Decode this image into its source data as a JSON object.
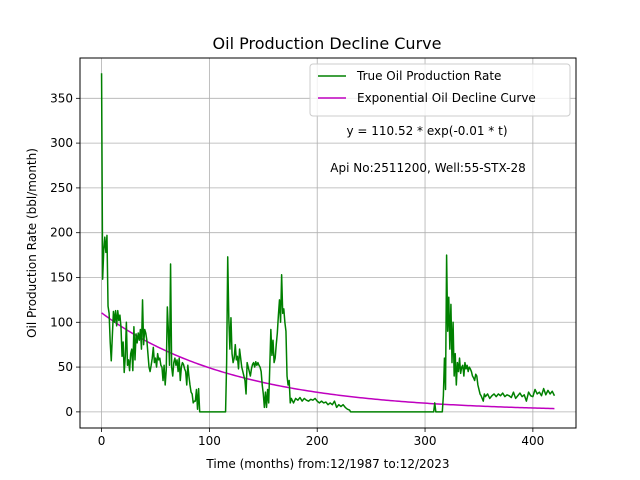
{
  "chart_data": {
    "type": "line",
    "title": "Oil Production Decline Curve",
    "xlabel": "Time (months) from:12/1987 to:12/2023",
    "ylabel": "Oil Production Rate (bbl/month)",
    "xlim": [
      -20,
      440
    ],
    "ylim": [
      -18,
      395
    ],
    "xticks": [
      0,
      100,
      200,
      300,
      400
    ],
    "yticks": [
      0,
      50,
      100,
      150,
      200,
      250,
      300,
      350
    ],
    "grid": true,
    "legend_position": "top-right",
    "annotations": [
      {
        "text": "y = 110.52 * exp(-0.01 * t)",
        "x": 304,
        "y": 308
      },
      {
        "text": "Api No:2511200, Well:55-STX-28",
        "x": 304,
        "y": 268
      }
    ],
    "series": [
      {
        "name": "True Oil Production Rate",
        "color": "#008000",
        "points": [
          [
            0,
            378
          ],
          [
            1,
            148
          ],
          [
            2,
            180
          ],
          [
            3,
            195
          ],
          [
            4,
            178
          ],
          [
            5,
            197
          ],
          [
            6,
            118
          ],
          [
            7,
            110
          ],
          [
            8,
            78
          ],
          [
            9,
            57
          ],
          [
            10,
            85
          ],
          [
            11,
            112
          ],
          [
            12,
            100
          ],
          [
            13,
            113
          ],
          [
            14,
            96
          ],
          [
            15,
            113
          ],
          [
            16,
            102
          ],
          [
            17,
            108
          ],
          [
            18,
            95
          ],
          [
            19,
            62
          ],
          [
            20,
            78
          ],
          [
            21,
            44
          ],
          [
            22,
            62
          ],
          [
            23,
            100
          ],
          [
            24,
            52
          ],
          [
            25,
            58
          ],
          [
            26,
            46
          ],
          [
            27,
            65
          ],
          [
            28,
            70
          ],
          [
            29,
            46
          ],
          [
            30,
            95
          ],
          [
            31,
            58
          ],
          [
            32,
            87
          ],
          [
            33,
            77
          ],
          [
            34,
            88
          ],
          [
            35,
            80
          ],
          [
            36,
            92
          ],
          [
            37,
            70
          ],
          [
            38,
            125
          ],
          [
            39,
            75
          ],
          [
            40,
            92
          ],
          [
            41,
            88
          ],
          [
            42,
            80
          ],
          [
            43,
            65
          ],
          [
            44,
            50
          ],
          [
            45,
            45
          ],
          [
            46,
            52
          ],
          [
            47,
            60
          ],
          [
            48,
            72
          ],
          [
            49,
            55
          ],
          [
            50,
            60
          ],
          [
            51,
            50
          ],
          [
            52,
            65
          ],
          [
            53,
            58
          ],
          [
            54,
            60
          ],
          [
            55,
            52
          ],
          [
            56,
            50
          ],
          [
            57,
            35
          ],
          [
            58,
            52
          ],
          [
            59,
            30
          ],
          [
            60,
            47
          ],
          [
            61,
            117
          ],
          [
            62,
            90
          ],
          [
            63,
            52
          ],
          [
            64,
            165
          ],
          [
            65,
            50
          ],
          [
            66,
            40
          ],
          [
            67,
            55
          ],
          [
            68,
            60
          ],
          [
            69,
            52
          ],
          [
            70,
            58
          ],
          [
            71,
            45
          ],
          [
            72,
            60
          ],
          [
            73,
            35
          ],
          [
            74,
            50
          ],
          [
            75,
            55
          ],
          [
            76,
            53
          ],
          [
            77,
            48
          ],
          [
            78,
            45
          ],
          [
            79,
            30
          ],
          [
            80,
            52
          ],
          [
            81,
            40
          ],
          [
            82,
            30
          ],
          [
            83,
            22
          ],
          [
            84,
            20
          ],
          [
            85,
            10
          ],
          [
            86,
            12
          ],
          [
            87,
            12
          ],
          [
            88,
            25
          ],
          [
            89,
            3
          ],
          [
            90,
            26
          ],
          [
            91,
            0
          ],
          [
            100,
            0
          ],
          [
            110,
            0
          ],
          [
            115,
            0
          ],
          [
            116,
            55
          ],
          [
            117,
            173
          ],
          [
            118,
            105
          ],
          [
            119,
            70
          ],
          [
            120,
            105
          ],
          [
            121,
            65
          ],
          [
            122,
            55
          ],
          [
            123,
            60
          ],
          [
            124,
            75
          ],
          [
            125,
            58
          ],
          [
            126,
            62
          ],
          [
            127,
            48
          ],
          [
            128,
            70
          ],
          [
            129,
            60
          ],
          [
            130,
            50
          ],
          [
            131,
            45
          ],
          [
            132,
            40
          ],
          [
            133,
            35
          ],
          [
            134,
            20
          ],
          [
            135,
            55
          ],
          [
            136,
            50
          ],
          [
            137,
            45
          ],
          [
            138,
            40
          ],
          [
            139,
            48
          ],
          [
            140,
            53
          ],
          [
            141,
            55
          ],
          [
            142,
            50
          ],
          [
            143,
            56
          ],
          [
            144,
            52
          ],
          [
            145,
            55
          ],
          [
            146,
            52
          ],
          [
            147,
            50
          ],
          [
            148,
            45
          ],
          [
            149,
            30
          ],
          [
            150,
            20
          ],
          [
            151,
            5
          ],
          [
            152,
            22
          ],
          [
            153,
            5
          ],
          [
            154,
            25
          ],
          [
            155,
            10
          ],
          [
            156,
            50
          ],
          [
            157,
            92
          ],
          [
            158,
            63
          ],
          [
            159,
            80
          ],
          [
            160,
            55
          ],
          [
            161,
            60
          ],
          [
            162,
            75
          ],
          [
            163,
            88
          ],
          [
            164,
            108
          ],
          [
            165,
            125
          ],
          [
            166,
            100
          ],
          [
            167,
            153
          ],
          [
            168,
            110
          ],
          [
            169,
            115
          ],
          [
            170,
            100
          ],
          [
            171,
            90
          ],
          [
            172,
            40
          ],
          [
            173,
            30
          ],
          [
            174,
            35
          ],
          [
            175,
            10
          ],
          [
            176,
            15
          ],
          [
            178,
            10
          ],
          [
            180,
            15
          ],
          [
            182,
            13
          ],
          [
            184,
            16
          ],
          [
            186,
            12
          ],
          [
            188,
            15
          ],
          [
            190,
            13
          ],
          [
            192,
            12
          ],
          [
            194,
            14
          ],
          [
            196,
            13
          ],
          [
            198,
            15
          ],
          [
            200,
            12
          ],
          [
            202,
            10
          ],
          [
            204,
            12
          ],
          [
            206,
            10
          ],
          [
            208,
            11
          ],
          [
            210,
            8
          ],
          [
            212,
            10
          ],
          [
            214,
            8
          ],
          [
            216,
            12
          ],
          [
            218,
            5
          ],
          [
            220,
            8
          ],
          [
            222,
            6
          ],
          [
            224,
            8
          ],
          [
            226,
            5
          ],
          [
            228,
            3
          ],
          [
            230,
            2
          ],
          [
            231,
            0
          ],
          [
            240,
            0
          ],
          [
            260,
            0
          ],
          [
            280,
            0
          ],
          [
            300,
            0
          ],
          [
            308,
            0
          ],
          [
            309,
            10
          ],
          [
            310,
            0
          ],
          [
            316,
            0
          ],
          [
            317,
            18
          ],
          [
            318,
            60
          ],
          [
            319,
            25
          ],
          [
            320,
            175
          ],
          [
            321,
            90
          ],
          [
            322,
            128
          ],
          [
            323,
            70
          ],
          [
            324,
            120
          ],
          [
            325,
            55
          ],
          [
            326,
            100
          ],
          [
            327,
            40
          ],
          [
            328,
            65
          ],
          [
            329,
            30
          ],
          [
            330,
            55
          ],
          [
            331,
            45
          ],
          [
            332,
            60
          ],
          [
            333,
            43
          ],
          [
            334,
            50
          ],
          [
            335,
            52
          ],
          [
            336,
            40
          ],
          [
            337,
            55
          ],
          [
            338,
            48
          ],
          [
            339,
            52
          ],
          [
            340,
            45
          ],
          [
            341,
            50
          ],
          [
            342,
            48
          ],
          [
            343,
            45
          ],
          [
            344,
            40
          ],
          [
            345,
            38
          ],
          [
            346,
            35
          ],
          [
            347,
            42
          ],
          [
            348,
            40
          ],
          [
            349,
            30
          ],
          [
            350,
            25
          ],
          [
            351,
            20
          ],
          [
            352,
            18
          ],
          [
            353,
            15
          ],
          [
            354,
            12
          ],
          [
            355,
            20
          ],
          [
            356,
            17
          ],
          [
            358,
            20
          ],
          [
            360,
            15
          ],
          [
            362,
            18
          ],
          [
            364,
            20
          ],
          [
            366,
            17
          ],
          [
            368,
            20
          ],
          [
            370,
            18
          ],
          [
            372,
            21
          ],
          [
            374,
            17
          ],
          [
            376,
            19
          ],
          [
            378,
            18
          ],
          [
            380,
            16
          ],
          [
            382,
            22
          ],
          [
            384,
            15
          ],
          [
            386,
            18
          ],
          [
            388,
            21
          ],
          [
            390,
            17
          ],
          [
            392,
            19
          ],
          [
            394,
            12
          ],
          [
            396,
            22
          ],
          [
            398,
            18
          ],
          [
            400,
            17
          ],
          [
            402,
            25
          ],
          [
            404,
            20
          ],
          [
            406,
            22
          ],
          [
            408,
            18
          ],
          [
            410,
            26
          ],
          [
            412,
            19
          ],
          [
            414,
            24
          ],
          [
            416,
            20
          ],
          [
            418,
            23
          ],
          [
            420,
            18
          ]
        ]
      },
      {
        "name": "Exponential Oil Decline Curve",
        "color": "#bf00bf",
        "function": {
          "a": 110.52,
          "b": 0.0081,
          "x_start": 0,
          "x_end": 420
        }
      }
    ]
  }
}
